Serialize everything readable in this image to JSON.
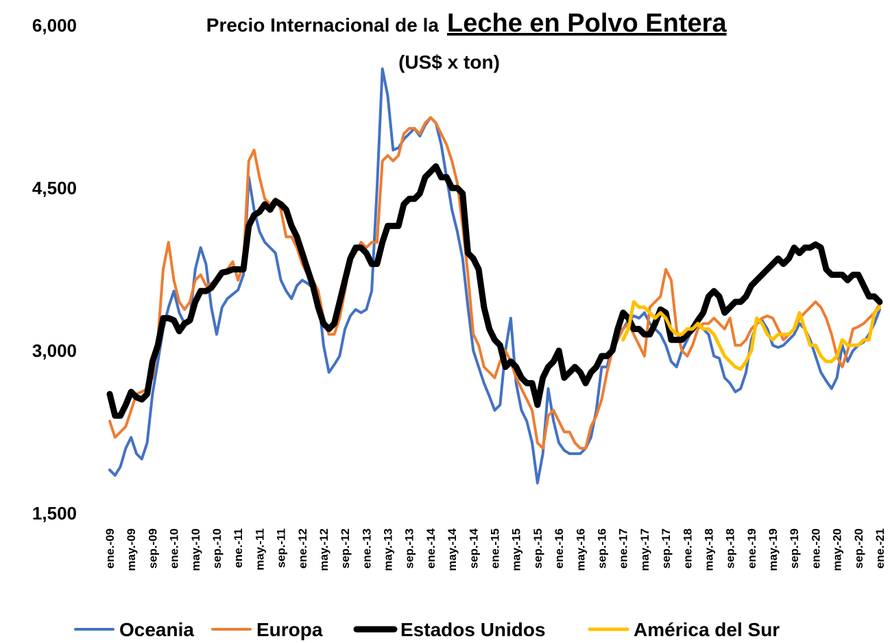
{
  "chart_data": {
    "type": "line",
    "title": "Precio Internacional de la",
    "title_highlight": "Leche en Polvo Entera",
    "subtitle": "(US$ x ton)",
    "categories": [
      "ene.-09",
      null,
      null,
      null,
      "may.-09",
      null,
      null,
      null,
      "sep.-09",
      null,
      null,
      null,
      "ene.-10",
      null,
      null,
      null,
      "may.-10",
      null,
      null,
      null,
      "sep.-10",
      null,
      null,
      null,
      "ene.-11",
      null,
      null,
      null,
      "may.-11",
      null,
      null,
      null,
      "sep.-11",
      null,
      null,
      null,
      "ene.-12",
      null,
      null,
      null,
      "may.-12",
      null,
      null,
      null,
      "sep.-12",
      null,
      null,
      null,
      "ene.-13",
      null,
      null,
      null,
      "may.-13",
      null,
      null,
      null,
      "sep.-13",
      null,
      null,
      null,
      "ene.-14",
      null,
      null,
      null,
      "may.-14",
      null,
      null,
      null,
      "sep.-14",
      null,
      null,
      null,
      "ene.-15",
      null,
      null,
      null,
      "may.-15",
      null,
      null,
      null,
      "sep.-15",
      null,
      null,
      null,
      "ene.-16",
      null,
      null,
      null,
      "may.-16",
      null,
      null,
      null,
      "sep.-16",
      null,
      null,
      null,
      "ene.-17",
      null,
      null,
      null,
      "may.-17",
      null,
      null,
      null,
      "sep.-17",
      null,
      null,
      null,
      "ene.-18",
      null,
      null,
      null,
      "may.-18",
      null,
      null,
      null,
      "sep.-18",
      null,
      null,
      null,
      "ene.-19",
      null,
      null,
      null,
      "may.-19",
      null,
      null,
      null,
      "sep.-19",
      null,
      null,
      null,
      "ene.-20",
      null,
      null,
      null,
      "may.-20",
      null,
      null,
      null,
      "sep.-20",
      null,
      null,
      null,
      "ene.-21"
    ],
    "series": [
      {
        "name": "Oceania",
        "color": "#4472c4",
        "width": 4,
        "values": [
          1900,
          1850,
          1930,
          2100,
          2200,
          2050,
          2000,
          2150,
          2600,
          2900,
          3200,
          3400,
          3550,
          3350,
          3250,
          3300,
          3750,
          3950,
          3800,
          3400,
          3150,
          3400,
          3480,
          3520,
          3560,
          3700,
          4600,
          4300,
          4100,
          4000,
          3950,
          3900,
          3650,
          3550,
          3480,
          3600,
          3650,
          3620,
          3580,
          3500,
          3050,
          2800,
          2870,
          2950,
          3200,
          3320,
          3380,
          3350,
          3380,
          3550,
          4500,
          5600,
          5350,
          4850,
          4870,
          4950,
          5000,
          5050,
          4980,
          5080,
          5150,
          5100,
          4900,
          4600,
          4300,
          4100,
          3850,
          3400,
          3000,
          2850,
          2700,
          2580,
          2450,
          2500,
          3000,
          3300,
          2700,
          2450,
          2350,
          2150,
          1780,
          2050,
          2650,
          2350,
          2150,
          2080,
          2050,
          2050,
          2050,
          2100,
          2200,
          2450,
          2850,
          2850,
          3050,
          3200,
          3200,
          3280,
          3320,
          3300,
          3350,
          3250,
          3200,
          3150,
          3050,
          2900,
          2850,
          3000,
          3100,
          3200,
          3250,
          3200,
          3150,
          2950,
          2930,
          2750,
          2700,
          2620,
          2650,
          2800,
          3100,
          3250,
          3280,
          3200,
          3050,
          3030,
          3050,
          3100,
          3150,
          3250,
          3200,
          3100,
          2950,
          2800,
          2720,
          2650,
          2750,
          3050,
          2900,
          3000,
          3050,
          3080,
          3150,
          3250,
          3380
        ]
      },
      {
        "name": "Europa",
        "color": "#ed7d31",
        "width": 4,
        "values": [
          2350,
          2200,
          2250,
          2300,
          2450,
          2600,
          2620,
          2650,
          2750,
          3100,
          3750,
          4000,
          3650,
          3450,
          3380,
          3450,
          3650,
          3700,
          3600,
          3620,
          3650,
          3700,
          3750,
          3820,
          3650,
          3800,
          4750,
          4850,
          4600,
          4400,
          4350,
          4400,
          4300,
          4050,
          4050,
          3950,
          3800,
          3700,
          3650,
          3550,
          3300,
          3150,
          3150,
          3300,
          3550,
          3850,
          3900,
          4000,
          3950,
          4000,
          4000,
          4750,
          4800,
          4750,
          4800,
          5000,
          5050,
          5050,
          5000,
          5100,
          5150,
          5100,
          5000,
          4900,
          4750,
          4550,
          4150,
          3700,
          3150,
          3050,
          2850,
          2800,
          2750,
          2900,
          3000,
          2900,
          2750,
          2650,
          2550,
          2450,
          2150,
          2100,
          2400,
          2450,
          2350,
          2250,
          2250,
          2150,
          2100,
          2100,
          2300,
          2400,
          2550,
          2800,
          3000,
          3100,
          3200,
          3250,
          3150,
          3050,
          2950,
          3400,
          3450,
          3500,
          3750,
          3650,
          3200,
          3000,
          2950,
          3050,
          3200,
          3250,
          3250,
          3300,
          3250,
          3200,
          3300,
          3050,
          3050,
          3100,
          3200,
          3250,
          3300,
          3320,
          3300,
          3200,
          3100,
          3150,
          3200,
          3300,
          3350,
          3400,
          3450,
          3400,
          3300,
          3150,
          2950,
          2850,
          3000,
          3200,
          3220,
          3250,
          3300,
          3350,
          3430
        ]
      },
      {
        "name": "Estados Unidos",
        "color": "#000000",
        "width": 9,
        "values": [
          2600,
          2400,
          2400,
          2500,
          2620,
          2570,
          2550,
          2600,
          2900,
          3050,
          3300,
          3300,
          3280,
          3180,
          3250,
          3280,
          3450,
          3550,
          3550,
          3580,
          3650,
          3720,
          3730,
          3750,
          3750,
          3750,
          4150,
          4250,
          4280,
          4350,
          4300,
          4380,
          4350,
          4300,
          4150,
          4050,
          3900,
          3750,
          3600,
          3400,
          3250,
          3200,
          3250,
          3450,
          3650,
          3850,
          3950,
          3950,
          3900,
          3800,
          3800,
          4000,
          4150,
          4150,
          4150,
          4350,
          4400,
          4400,
          4450,
          4600,
          4650,
          4700,
          4600,
          4600,
          4500,
          4500,
          4450,
          3900,
          3850,
          3750,
          3400,
          3200,
          3100,
          3050,
          2850,
          2900,
          2850,
          2750,
          2700,
          2700,
          2500,
          2750,
          2850,
          2900,
          3000,
          2750,
          2800,
          2850,
          2800,
          2700,
          2800,
          2850,
          2950,
          2950,
          3000,
          3200,
          3350,
          3300,
          3200,
          3200,
          3150,
          3150,
          3250,
          3380,
          3350,
          3100,
          3100,
          3100,
          3150,
          3200,
          3280,
          3350,
          3500,
          3550,
          3500,
          3350,
          3400,
          3450,
          3450,
          3500,
          3600,
          3650,
          3700,
          3750,
          3800,
          3850,
          3800,
          3850,
          3950,
          3900,
          3950,
          3950,
          3980,
          3950,
          3750,
          3700,
          3700,
          3700,
          3650,
          3700,
          3700,
          3600,
          3500,
          3500,
          3450
        ]
      },
      {
        "name": "América del Sur",
        "color": "#ffc000",
        "width": 5,
        "values": [
          null,
          null,
          null,
          null,
          null,
          null,
          null,
          null,
          null,
          null,
          null,
          null,
          null,
          null,
          null,
          null,
          null,
          null,
          null,
          null,
          null,
          null,
          null,
          null,
          null,
          null,
          null,
          null,
          null,
          null,
          null,
          null,
          null,
          null,
          null,
          null,
          null,
          null,
          null,
          null,
          null,
          null,
          null,
          null,
          null,
          null,
          null,
          null,
          null,
          null,
          null,
          null,
          null,
          null,
          null,
          null,
          null,
          null,
          null,
          null,
          null,
          null,
          null,
          null,
          null,
          null,
          null,
          null,
          null,
          null,
          null,
          null,
          null,
          null,
          null,
          null,
          null,
          null,
          null,
          null,
          null,
          null,
          null,
          null,
          null,
          null,
          null,
          null,
          null,
          null,
          null,
          null,
          null,
          null,
          null,
          null,
          3100,
          3200,
          3450,
          3400,
          3400,
          3350,
          3300,
          3350,
          3300,
          3200,
          3150,
          3150,
          3200,
          3200,
          3250,
          3200,
          3200,
          3150,
          3050,
          2950,
          2900,
          2850,
          2830,
          2900,
          3000,
          3300,
          3250,
          3150,
          3100,
          3150,
          3150,
          3150,
          3200,
          3350,
          3200,
          3050,
          3050,
          2950,
          2900,
          2900,
          2950,
          3100,
          3050,
          3050,
          3050,
          3100,
          3100,
          3350,
          3400
        ]
      }
    ],
    "ylim": [
      1500,
      6000
    ],
    "yticks": [
      {
        "value": 1500,
        "label": "1,500"
      },
      {
        "value": 3000,
        "label": "3,000"
      },
      {
        "value": 4500,
        "label": "4,500"
      },
      {
        "value": 6000,
        "label": "6,000"
      }
    ],
    "grid": false,
    "legend": "bottom"
  }
}
